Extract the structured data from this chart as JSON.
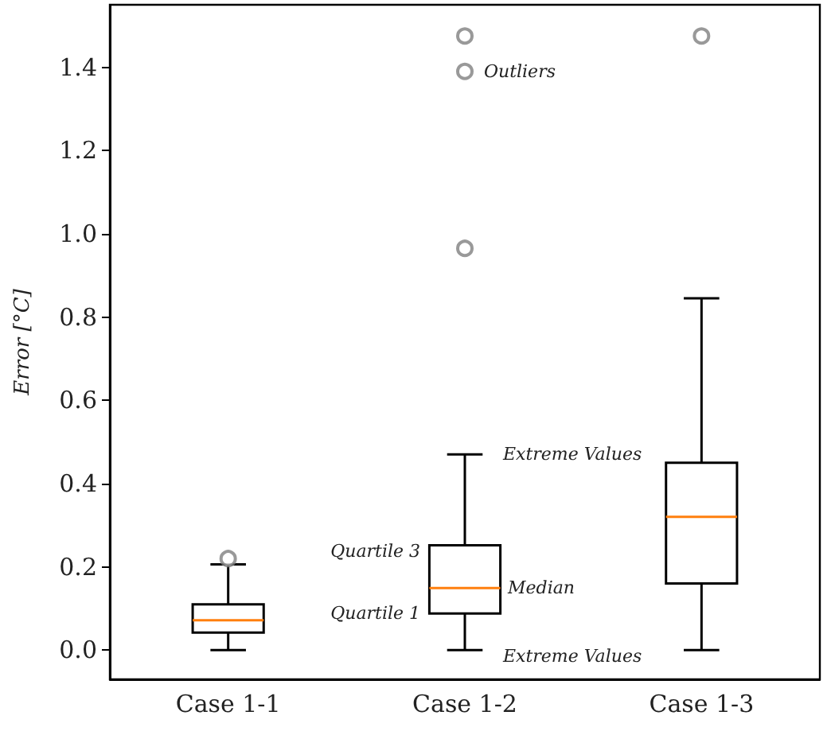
{
  "chart_data": {
    "type": "box",
    "ylabel": "Error [°C]",
    "categories": [
      "Case 1-1",
      "Case 1-2",
      "Case 1-3"
    ],
    "boxes": [
      {
        "low": 0,
        "q1": 0.042,
        "median": 0.072,
        "q3": 0.11,
        "high": 0.206,
        "outliers": [
          0.22
        ]
      },
      {
        "low": 0,
        "q1": 0.088,
        "median": 0.149,
        "q3": 0.252,
        "high": 0.47,
        "outliers": [
          1.475,
          1.39,
          0.965
        ]
      },
      {
        "low": 0,
        "q1": 0.16,
        "median": 0.32,
        "q3": 0.45,
        "high": 0.845,
        "outliers": [
          1.475
        ]
      }
    ],
    "ylim": [
      -0.07,
      1.55
    ],
    "yticks": [
      {
        "value": 0,
        "label": "0.0"
      },
      {
        "value": 0.2,
        "label": "0.2"
      },
      {
        "value": 0.4,
        "label": "0.4"
      },
      {
        "value": 0.6,
        "label": "0.6"
      },
      {
        "value": 0.8,
        "label": "0.8"
      },
      {
        "value": 1,
        "label": "1.0"
      },
      {
        "value": 1.2,
        "label": "1.2"
      },
      {
        "value": 1.4,
        "label": "1.4"
      }
    ],
    "annotations": [
      "Outliers",
      {
        "text": "Extreme Values",
        "x": "Case 1-2",
        "y": 0.47
      },
      {
        "text": "Quartile 3",
        "x": "Case 1-2",
        "y": 0.252
      },
      {
        "text": "Median",
        "x": "Case 1-2",
        "y": 0.149
      },
      {
        "text": "Quartile 1",
        "x": "Case 1-2",
        "y": 0.088
      },
      {
        "text": "Extreme Values",
        "x": "Case 1-2",
        "y": 0
      }
    ],
    "grid": false
  }
}
